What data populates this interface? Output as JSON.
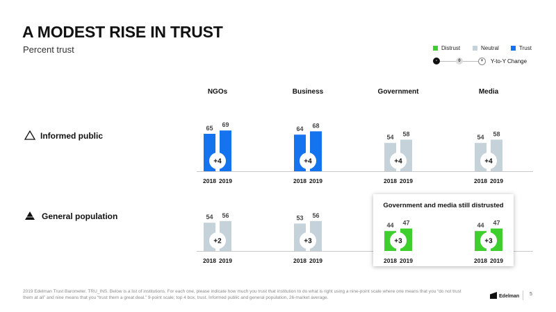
{
  "title": "A MODEST RISE IN TRUST",
  "subtitle": "Percent trust",
  "legend": {
    "items": [
      {
        "label": "Distrust",
        "color": "#3ecf2f"
      },
      {
        "label": "Neutral",
        "color": "#c5d2da"
      },
      {
        "label": "Trust",
        "color": "#1673f0"
      }
    ],
    "yoy_label": "Y-to-Y Change",
    "yoy_symbols": [
      "-",
      "0",
      "+"
    ]
  },
  "highlight_title": "Government and media still distrusted",
  "footnote": "2019 Edelman Trust Barometer. TRU_INS. Below is a list of institutions. For each one, please indicate how much you trust that institution to do what is right using a nine-point scale where one means that you “do not trust them at all” and nine means that you “trust them a great deal.” 9-point scale; top 4 box, trust. Informed public and general population, 26-market average.",
  "logo_text": "Edelman",
  "page_number": "5",
  "chart_data": {
    "type": "bar",
    "categories": [
      "NGOs",
      "Business",
      "Government",
      "Media"
    ],
    "x_labels": [
      "2018",
      "2019"
    ],
    "groups": [
      {
        "name": "Informed public",
        "values": [
          {
            "category": "NGOs",
            "y2018": 65,
            "y2019": 69,
            "change": "+4",
            "level": "Trust"
          },
          {
            "category": "Business",
            "y2018": 64,
            "y2019": 68,
            "change": "+4",
            "level": "Trust"
          },
          {
            "category": "Government",
            "y2018": 54,
            "y2019": 58,
            "change": "+4",
            "level": "Neutral"
          },
          {
            "category": "Media",
            "y2018": 54,
            "y2019": 58,
            "change": "+4",
            "level": "Neutral"
          }
        ]
      },
      {
        "name": "General population",
        "values": [
          {
            "category": "NGOs",
            "y2018": 54,
            "y2019": 56,
            "change": "+2",
            "level": "Neutral"
          },
          {
            "category": "Business",
            "y2018": 53,
            "y2019": 56,
            "change": "+3",
            "level": "Neutral"
          },
          {
            "category": "Government",
            "y2018": 44,
            "y2019": 47,
            "change": "+3",
            "level": "Distrust"
          },
          {
            "category": "Media",
            "y2018": 44,
            "y2019": 47,
            "change": "+3",
            "level": "Distrust"
          }
        ]
      }
    ]
  }
}
